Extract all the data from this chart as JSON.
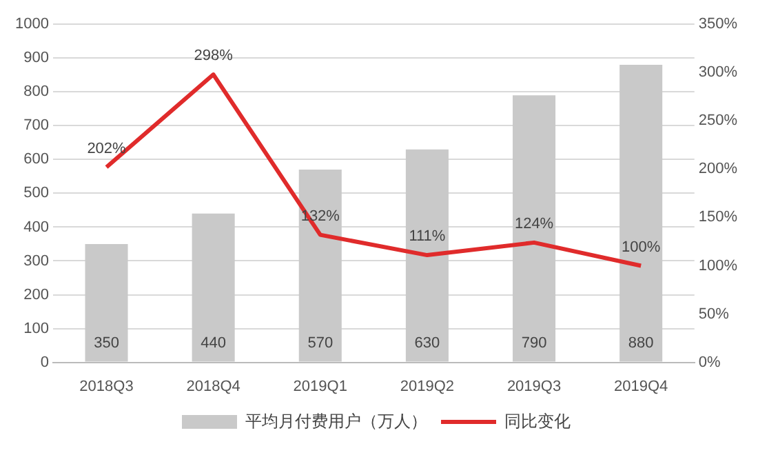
{
  "chart_data": {
    "type": "bar",
    "categories": [
      "2018Q3",
      "2018Q4",
      "2019Q1",
      "2019Q2",
      "2019Q3",
      "2019Q4"
    ],
    "series": [
      {
        "name": "平均月付费用户（万人）",
        "color": "#c9c9c9",
        "values": [
          350,
          440,
          570,
          630,
          790,
          880
        ],
        "value_labels": [
          "350",
          "440",
          "570",
          "630",
          "790",
          "880"
        ]
      },
      {
        "name": "同比变化",
        "type": "line",
        "axis": "y2",
        "color": "#e02b2b",
        "marker": "none",
        "values": [
          202,
          298,
          132,
          111,
          124,
          100
        ],
        "value_labels": [
          "202%",
          "298%",
          "132%",
          "111%",
          "124%",
          "100%"
        ]
      }
    ],
    "ylim": [
      0,
      1000
    ],
    "yticks": [
      0,
      100,
      200,
      300,
      400,
      500,
      600,
      700,
      800,
      900,
      1000
    ],
    "y2lim": [
      0,
      350
    ],
    "y2ticks": [
      {
        "value": 0,
        "label": "0%"
      },
      {
        "value": 50,
        "label": "50%"
      },
      {
        "value": 100,
        "label": "100%"
      },
      {
        "value": 150,
        "label": "150%"
      },
      {
        "value": 200,
        "label": "200%"
      },
      {
        "value": 250,
        "label": "250%"
      },
      {
        "value": 300,
        "label": "300%"
      },
      {
        "value": 350,
        "label": "350%"
      }
    ],
    "grid": "y",
    "legend": "bottom"
  }
}
